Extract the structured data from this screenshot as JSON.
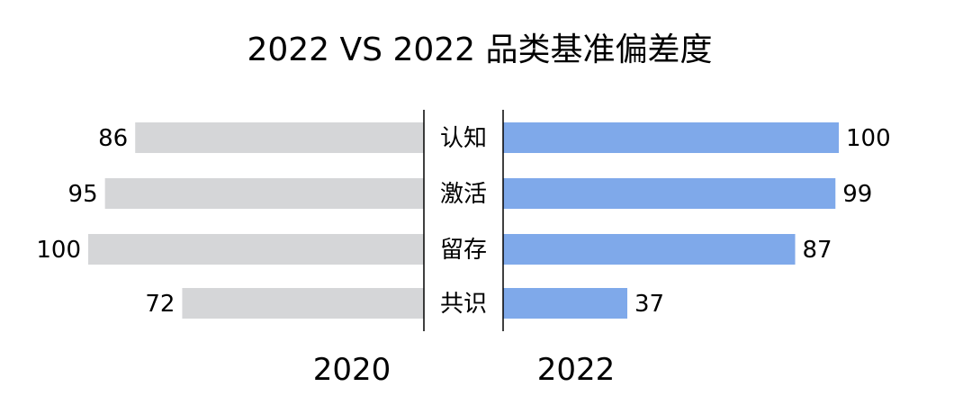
{
  "chart_data": {
    "type": "bar",
    "title": "2022 VS 2022 品类基准偏差度",
    "categories": [
      "认知",
      "激活",
      "留存",
      "共识"
    ],
    "series": [
      {
        "name": "2020",
        "values": [
          86,
          95,
          100,
          72
        ],
        "color": "#d5d6d8"
      },
      {
        "name": "2022",
        "values": [
          100,
          99,
          87,
          37
        ],
        "color": "#7fa9ea"
      }
    ],
    "xlim": [
      0,
      100
    ],
    "grid": false
  }
}
